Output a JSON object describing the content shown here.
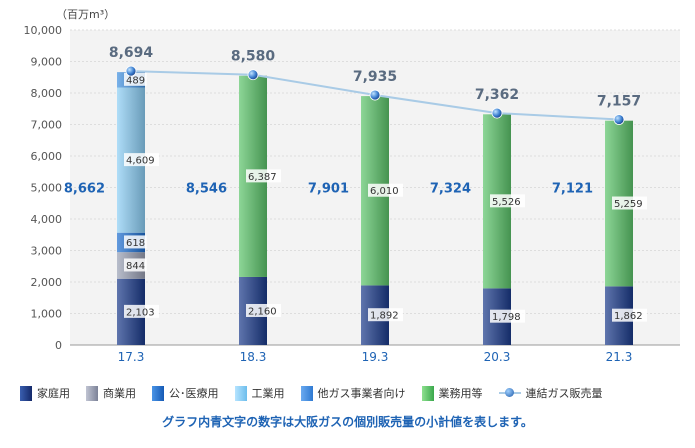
{
  "chart_data": {
    "type": "bar",
    "stacked": true,
    "unit_label": "（百万m³）",
    "categories": [
      "17.3",
      "18.3",
      "19.3",
      "20.3",
      "21.3"
    ],
    "ylim": [
      0,
      10000
    ],
    "yticks": [
      "0",
      "1,000",
      "2,000",
      "3,000",
      "4,000",
      "5,000",
      "6,000",
      "7,000",
      "8,000",
      "9,000",
      "10,000"
    ],
    "grid": true,
    "series": [
      {
        "name": "家庭用",
        "color": "#1b3a8a",
        "values": [
          2103,
          2160,
          1892,
          1798,
          1862
        ],
        "labels": [
          "2,103",
          "2,160",
          "1,892",
          "1,798",
          "1,862"
        ]
      },
      {
        "name": "商業用",
        "color": "#9aa0b4",
        "values": [
          844,
          null,
          null,
          null,
          null
        ],
        "labels": [
          "844",
          "",
          "",
          "",
          ""
        ]
      },
      {
        "name": "公･医療用",
        "color": "#1e6fd0",
        "values": [
          618,
          null,
          null,
          null,
          null
        ],
        "labels": [
          "618",
          "",
          "",
          "",
          ""
        ]
      },
      {
        "name": "工業用",
        "color": "#8ccff5",
        "values": [
          4609,
          null,
          null,
          null,
          null
        ],
        "labels": [
          "4,609",
          "",
          "",
          "",
          ""
        ]
      },
      {
        "name": "他ガス事業者向け",
        "color": "#3f8fe0",
        "values": [
          489,
          null,
          null,
          null,
          null
        ],
        "labels": [
          "489",
          "",
          "",
          "",
          ""
        ]
      },
      {
        "name": "業務用等",
        "color": "#5cc46a",
        "values": [
          null,
          6387,
          6010,
          5526,
          5259
        ],
        "labels": [
          "",
          "6,387",
          "6,010",
          "5,526",
          "5,259"
        ]
      }
    ],
    "line": {
      "name": "連結ガス販売量",
      "values": [
        8694,
        8580,
        7935,
        7362,
        7157
      ],
      "labels": [
        "8,694",
        "8,580",
        "7,935",
        "7,362",
        "7,157"
      ]
    },
    "subtotals": {
      "values": [
        8662,
        8546,
        7901,
        7324,
        7121
      ],
      "labels": [
        "8,662",
        "8,546",
        "7,901",
        "7,324",
        "7,121"
      ]
    }
  },
  "legend": {
    "items": [
      {
        "label": "家庭用",
        "color": "#1b3a8a"
      },
      {
        "label": "商業用",
        "color": "#9aa0b4"
      },
      {
        "label": "公･医療用",
        "color": "#1e6fd0"
      },
      {
        "label": "工業用",
        "color": "#8ccff5"
      },
      {
        "label": "他ガス事業者向け",
        "color": "#3f8fe0"
      },
      {
        "label": "業務用等",
        "color": "#5cc46a"
      }
    ],
    "line_label": "連結ガス販売量"
  },
  "note": "グラフ内青文字の数字は大阪ガスの個別販売量の小計値を表します。"
}
